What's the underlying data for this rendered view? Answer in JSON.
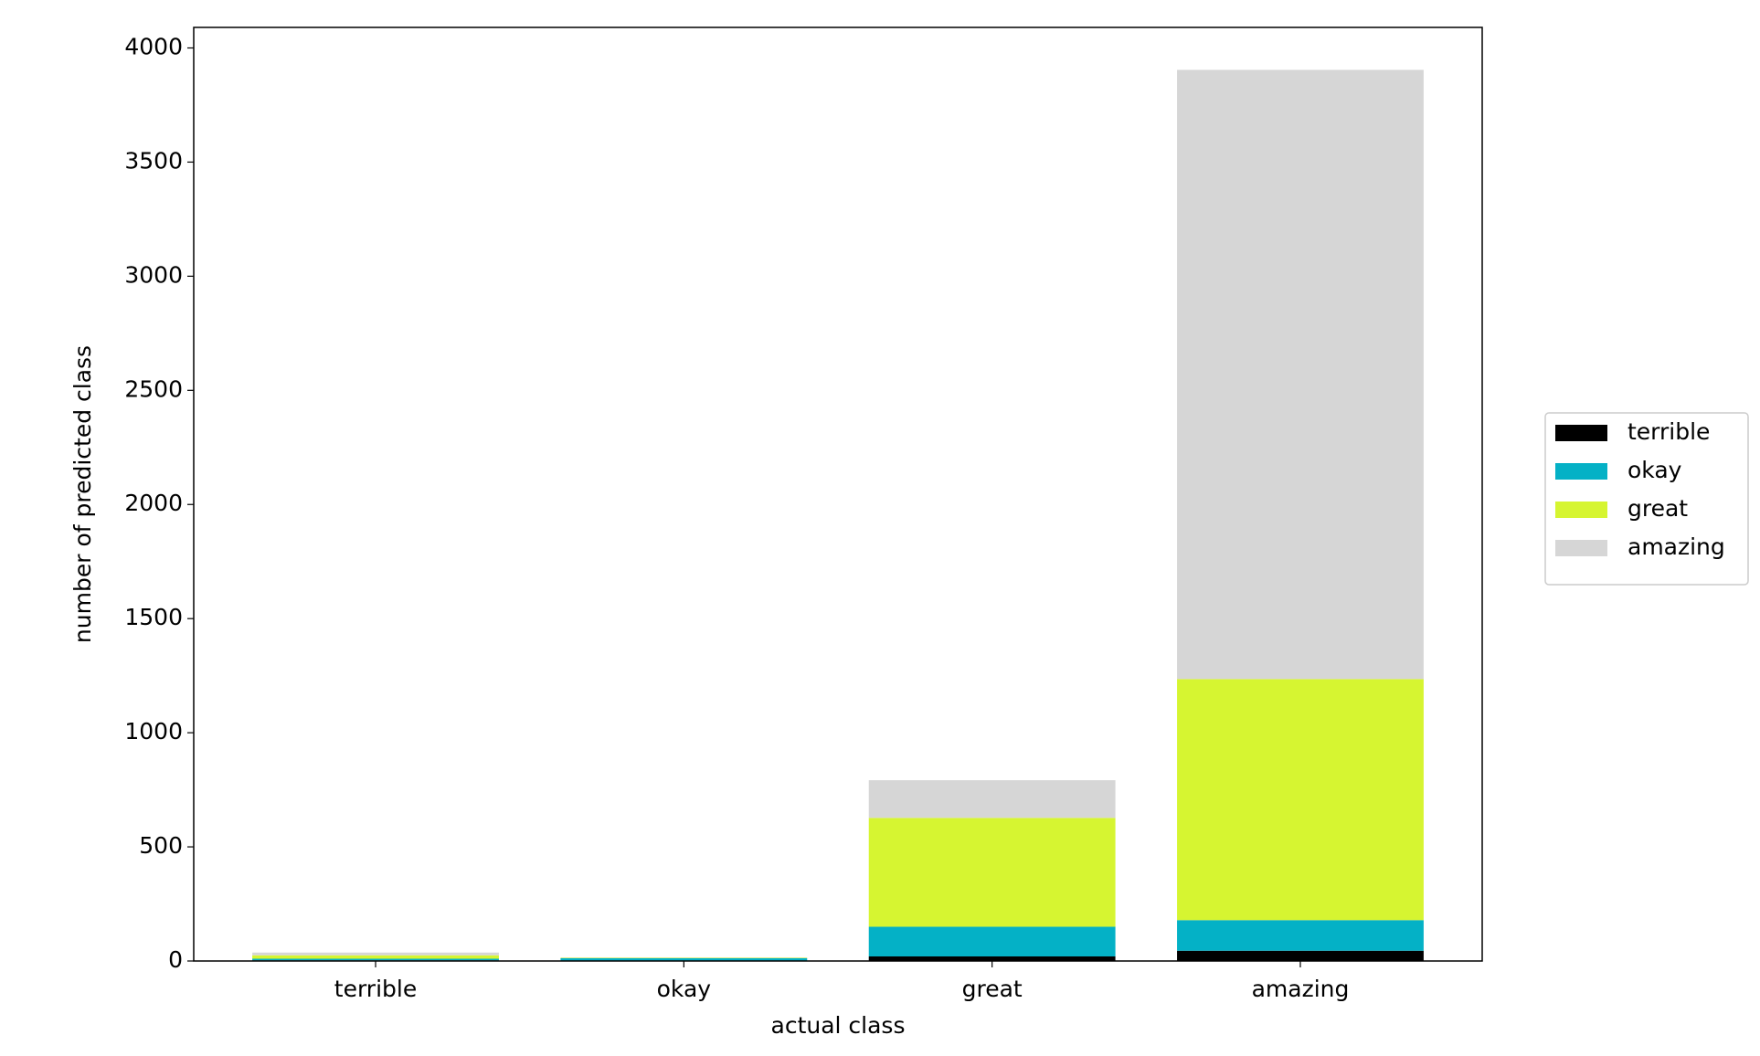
{
  "chart_data": {
    "type": "stacked_bar",
    "x_label": "actual class",
    "y_label": "number of predicted class",
    "categories": [
      "terrible",
      "okay",
      "great",
      "amazing"
    ],
    "series": [
      {
        "name": "terrible",
        "color": "#000000",
        "values": [
          3,
          2,
          20,
          45
        ]
      },
      {
        "name": "okay",
        "color": "#04b1c6",
        "values": [
          7,
          10,
          130,
          134
        ]
      },
      {
        "name": "great",
        "color": "#d6f531",
        "values": [
          15,
          2,
          477,
          1056
        ]
      },
      {
        "name": "amazing",
        "color": "#d6d6d6",
        "values": [
          12,
          1,
          165,
          2669
        ]
      }
    ],
    "ylim": [
      0,
      4090
    ],
    "yticks": [
      0,
      500,
      1000,
      1500,
      2000,
      2500,
      3000,
      3500,
      4000
    ],
    "legend": "right"
  }
}
